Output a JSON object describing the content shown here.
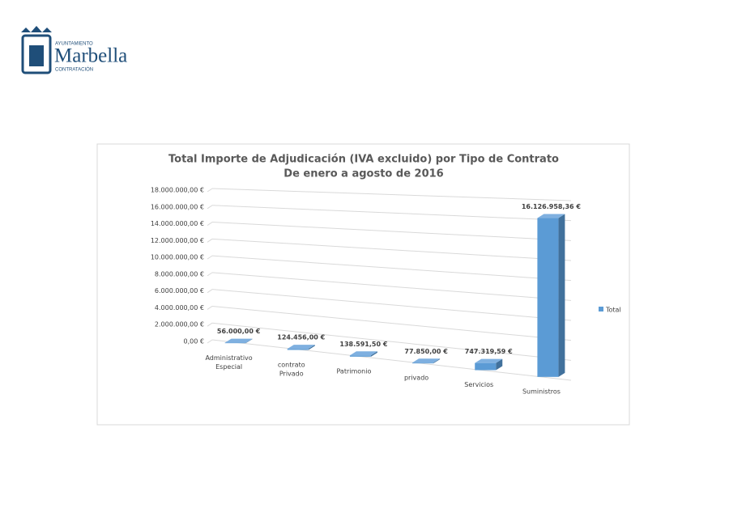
{
  "header": {
    "top_text": "AYUNTAMIENTO",
    "name": "Marbella",
    "bottom_text": "CONTRATACIÓN"
  },
  "chart_data": {
    "type": "bar3d",
    "title": "Total Importe de Adjudicación (IVA excluido) por Tipo de Contrato",
    "subtitle": "De enero a agosto de 2016",
    "categories": [
      "Administrativo Especial",
      "contrato Privado",
      "Patrimonio",
      "privado",
      "Servicios",
      "Suministros"
    ],
    "series": [
      {
        "name": "Total",
        "color": "#5b9bd5",
        "values": [
          56000,
          124456,
          138591.5,
          77850,
          747319.59,
          16126958.36
        ],
        "value_labels": [
          "56.000,00 €",
          "124.456,00 €",
          "138.591,50 €",
          "77.850,00 €",
          "747.319,59 €",
          "16.126.958,36 €"
        ]
      }
    ],
    "ylim": [
      0,
      18000000
    ],
    "yticks": [
      {
        "value": 0,
        "label": "0,00 €"
      },
      {
        "value": 2000000,
        "label": "2.000.000,00 €"
      },
      {
        "value": 4000000,
        "label": "4.000.000,00 €"
      },
      {
        "value": 6000000,
        "label": "6.000.000,00 €"
      },
      {
        "value": 8000000,
        "label": "8.000.000,00 €"
      },
      {
        "value": 10000000,
        "label": "10.000.000,00 €"
      },
      {
        "value": 12000000,
        "label": "12.000.000,00 €"
      },
      {
        "value": 14000000,
        "label": "14.000.000,00 €"
      },
      {
        "value": 16000000,
        "label": "16.000.000,00 €"
      },
      {
        "value": 18000000,
        "label": "18.000.000,00 €"
      }
    ],
    "grid": true,
    "legend": "right"
  }
}
